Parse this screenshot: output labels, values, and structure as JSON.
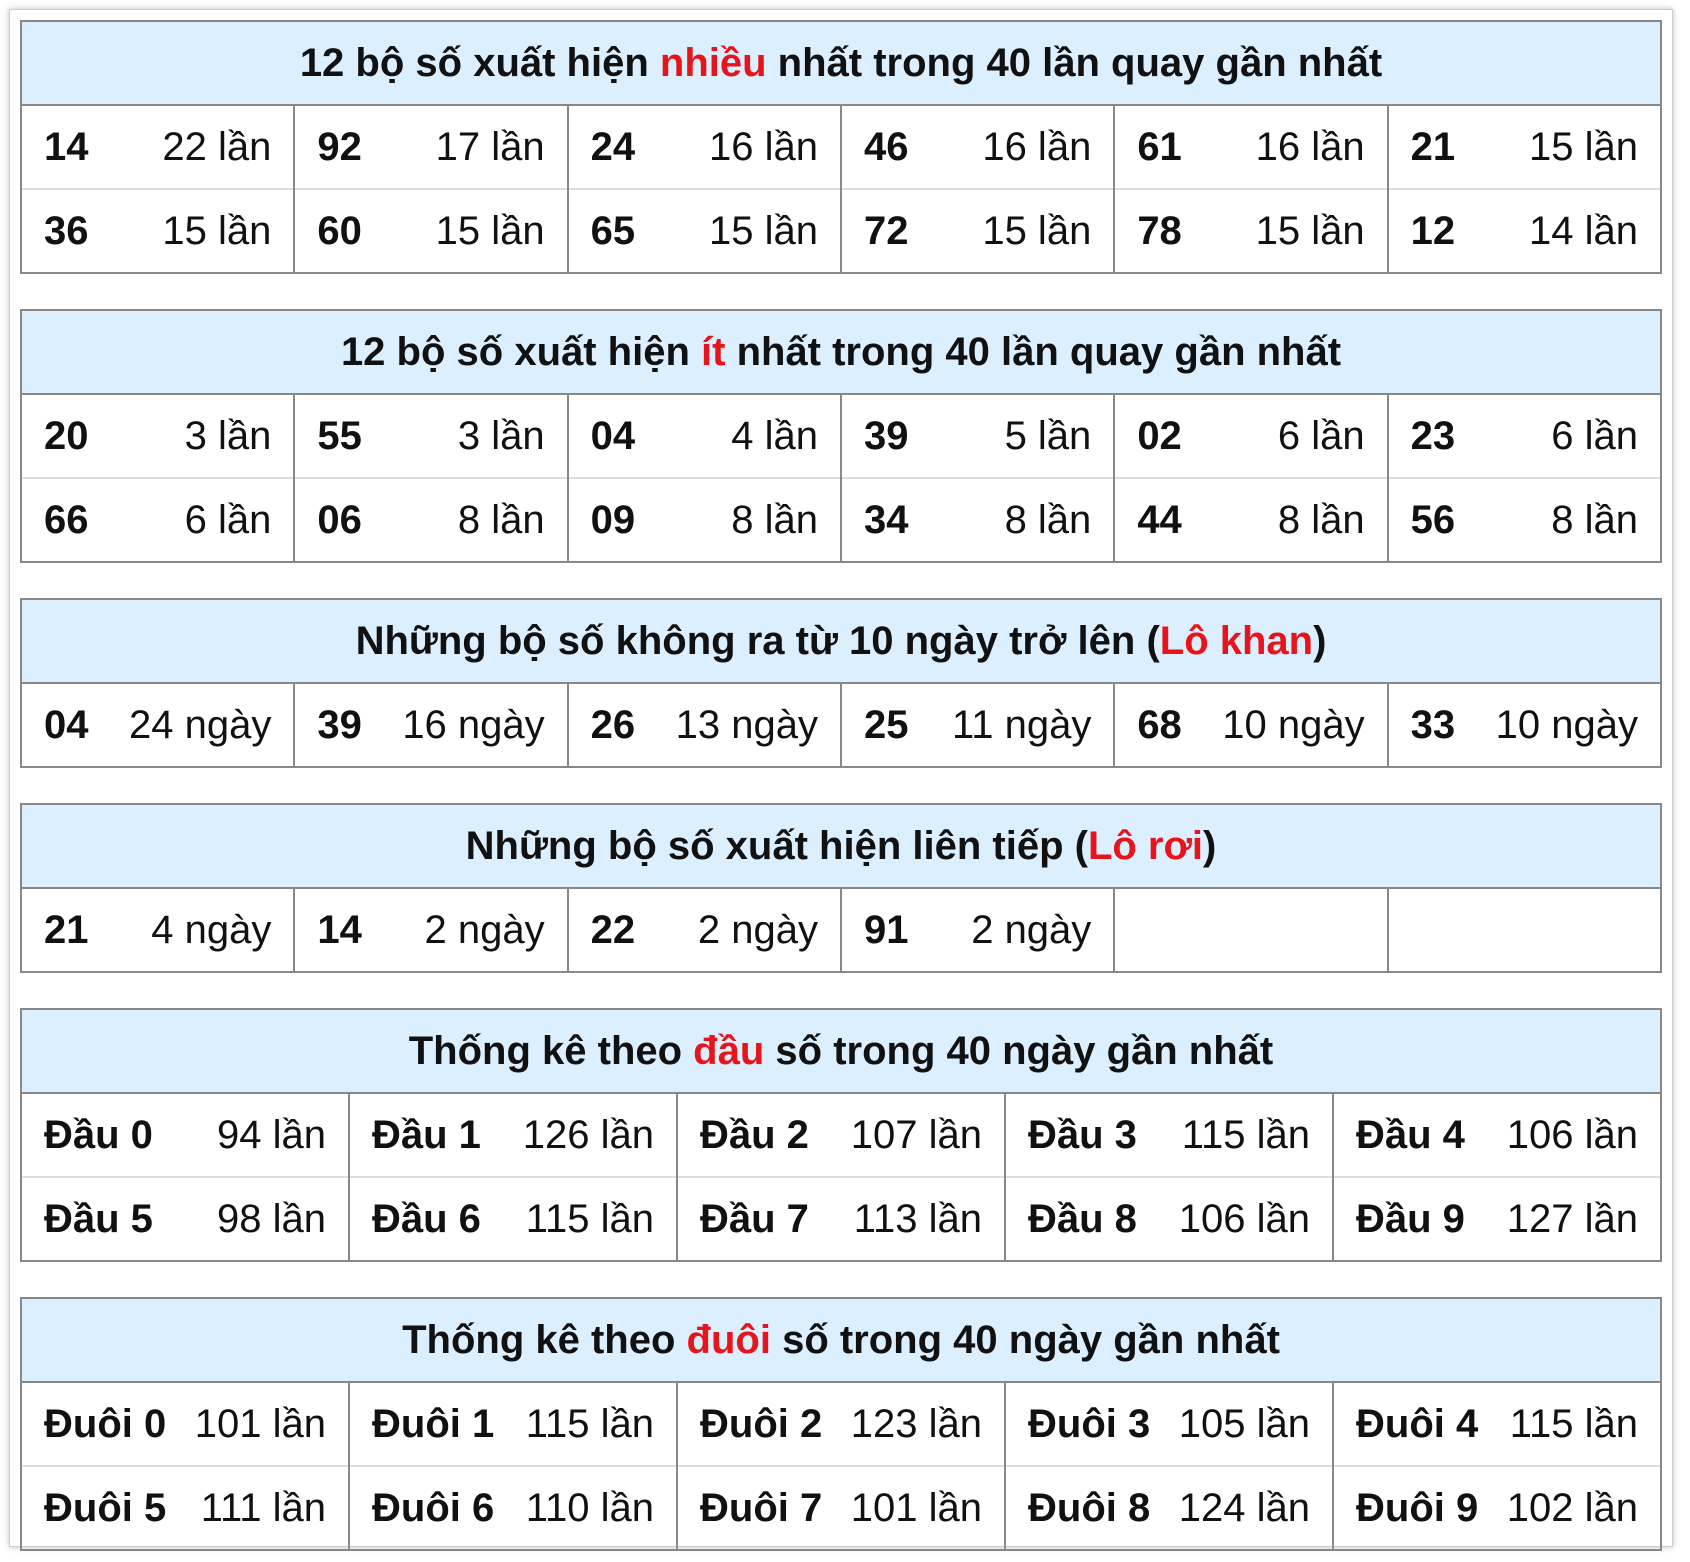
{
  "sections": [
    {
      "title": {
        "before": "12 bộ số xuất hiện ",
        "highlight": "nhiều",
        "after": " nhất trong 40 lần quay gần nhất"
      },
      "rows": [
        [
          [
            "14",
            "22 lần"
          ],
          [
            "92",
            "17 lần"
          ],
          [
            "24",
            "16 lần"
          ],
          [
            "46",
            "16 lần"
          ],
          [
            "61",
            "16 lần"
          ],
          [
            "21",
            "15 lần"
          ]
        ],
        [
          [
            "36",
            "15 lần"
          ],
          [
            "60",
            "15 lần"
          ],
          [
            "65",
            "15 lần"
          ],
          [
            "72",
            "15 lần"
          ],
          [
            "78",
            "15 lần"
          ],
          [
            "12",
            "14 lần"
          ]
        ]
      ]
    },
    {
      "title": {
        "before": "12 bộ số xuất hiện ",
        "highlight": "ít",
        "after": " nhất trong 40 lần quay gần nhất"
      },
      "rows": [
        [
          [
            "20",
            "3 lần"
          ],
          [
            "55",
            "3 lần"
          ],
          [
            "04",
            "4 lần"
          ],
          [
            "39",
            "5 lần"
          ],
          [
            "02",
            "6 lần"
          ],
          [
            "23",
            "6 lần"
          ]
        ],
        [
          [
            "66",
            "6 lần"
          ],
          [
            "06",
            "8 lần"
          ],
          [
            "09",
            "8 lần"
          ],
          [
            "34",
            "8 lần"
          ],
          [
            "44",
            "8 lần"
          ],
          [
            "56",
            "8 lần"
          ]
        ]
      ]
    },
    {
      "title": {
        "before": "Những bộ số không ra từ 10 ngày trở lên (",
        "highlight": "Lô khan",
        "after": ")"
      },
      "rows": [
        [
          [
            "04",
            "24 ngày"
          ],
          [
            "39",
            "16 ngày"
          ],
          [
            "26",
            "13 ngày"
          ],
          [
            "25",
            "11 ngày"
          ],
          [
            "68",
            "10 ngày"
          ],
          [
            "33",
            "10 ngày"
          ]
        ]
      ]
    },
    {
      "title": {
        "before": "Những bộ số xuất hiện liên tiếp (",
        "highlight": "Lô rơi",
        "after": ")"
      },
      "rows": [
        [
          [
            "21",
            "4 ngày"
          ],
          [
            "14",
            "2 ngày"
          ],
          [
            "22",
            "2 ngày"
          ],
          [
            "91",
            "2 ngày"
          ]
        ]
      ]
    },
    {
      "title": {
        "before": "Thống kê theo ",
        "highlight": "đầu",
        "after": " số trong 40 ngày gần nhất"
      },
      "rows": [
        [
          [
            "Đầu 0",
            "94 lần"
          ],
          [
            "Đầu 1",
            "126 lần"
          ],
          [
            "Đầu 2",
            "107 lần"
          ],
          [
            "Đầu 3",
            "115 lần"
          ],
          [
            "Đầu 4",
            "106 lần"
          ]
        ],
        [
          [
            "Đầu 5",
            "98 lần"
          ],
          [
            "Đầu 6",
            "115 lần"
          ],
          [
            "Đầu 7",
            "113 lần"
          ],
          [
            "Đầu 8",
            "106 lần"
          ],
          [
            "Đầu 9",
            "127 lần"
          ]
        ]
      ]
    },
    {
      "title": {
        "before": "Thống kê theo ",
        "highlight": "đuôi",
        "after": " số trong 40 ngày gần nhất"
      },
      "rows": [
        [
          [
            "Đuôi 0",
            "101 lần"
          ],
          [
            "Đuôi 1",
            "115 lần"
          ],
          [
            "Đuôi 2",
            "123 lần"
          ],
          [
            "Đuôi 3",
            "105 lần"
          ],
          [
            "Đuôi 4",
            "115 lần"
          ]
        ],
        [
          [
            "Đuôi 5",
            "111 lần"
          ],
          [
            "Đuôi 6",
            "110 lần"
          ],
          [
            "Đuôi 7",
            "101 lần"
          ],
          [
            "Đuôi 8",
            "124 lần"
          ],
          [
            "Đuôi 9",
            "102 lần"
          ]
        ]
      ]
    }
  ]
}
